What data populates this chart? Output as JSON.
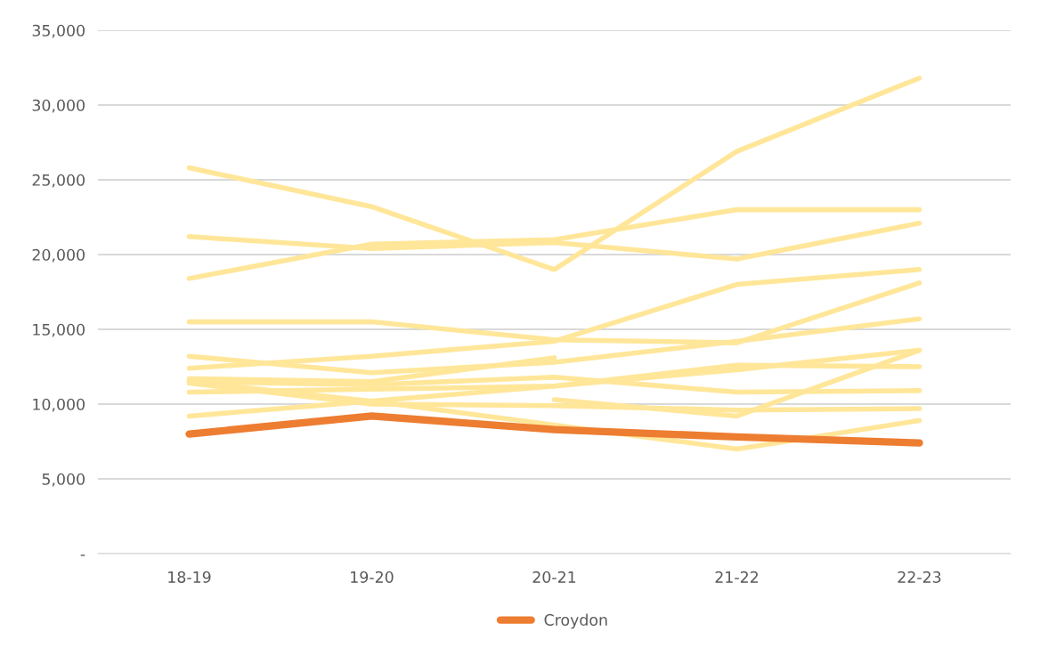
{
  "chart_data": {
    "type": "line",
    "categories": [
      "18-19",
      "19-20",
      "20-21",
      "21-22",
      "22-23"
    ],
    "ylim": [
      0,
      35000
    ],
    "yticks": [
      {
        "value": 0,
        "label": "-"
      },
      {
        "value": 5000,
        "label": "5,000"
      },
      {
        "value": 10000,
        "label": "10,000"
      },
      {
        "value": 15000,
        "label": "15,000"
      },
      {
        "value": 20000,
        "label": "20,000"
      },
      {
        "value": 25000,
        "label": "25,000"
      },
      {
        "value": 30000,
        "label": "30,000"
      },
      {
        "value": 35000,
        "label": "35,000"
      }
    ],
    "grid": "y",
    "legend": "bottom",
    "marker": "none",
    "line_style": "solid",
    "series": [
      {
        "color": "#ffe699",
        "values": [
          25800,
          23200,
          19000,
          26900,
          31800
        ]
      },
      {
        "color": "#ffe699",
        "values": [
          21200,
          20400,
          20800,
          19700,
          22100
        ]
      },
      {
        "color": "#ffe699",
        "values": [
          18400,
          20700,
          21000,
          23000,
          23000
        ]
      },
      {
        "color": "#ffe699",
        "values": [
          15500,
          15500,
          14300,
          14100,
          18100
        ]
      },
      {
        "color": "#ffe699",
        "values": [
          12400,
          13200,
          14200,
          18000,
          19000
        ]
      },
      {
        "color": "#ffe699",
        "values": [
          13200,
          12100,
          12800,
          14200,
          15700
        ]
      },
      {
        "color": "#ffe699",
        "values": [
          11700,
          11500,
          13100,
          null,
          null
        ]
      },
      {
        "color": "#ffe699",
        "values": [
          11500,
          11300,
          11800,
          10800,
          10900
        ]
      },
      {
        "color": "#ffe699",
        "values": [
          10800,
          11000,
          11200,
          12600,
          12500
        ]
      },
      {
        "color": "#ffe699",
        "values": [
          11400,
          10000,
          9900,
          9600,
          9700
        ]
      },
      {
        "color": "#ffe699",
        "values": [
          9200,
          10200,
          11200,
          12300,
          13600
        ]
      },
      {
        "color": "#ffe699",
        "values": [
          null,
          null,
          10300,
          9200,
          13600
        ]
      },
      {
        "color": "#ffe699",
        "values": [
          11500,
          10200,
          8600,
          7000,
          8900
        ]
      },
      {
        "name": "Croydon",
        "color": "#ed7d31",
        "values": [
          8000,
          9200,
          8300,
          7800,
          7400
        ]
      }
    ]
  }
}
